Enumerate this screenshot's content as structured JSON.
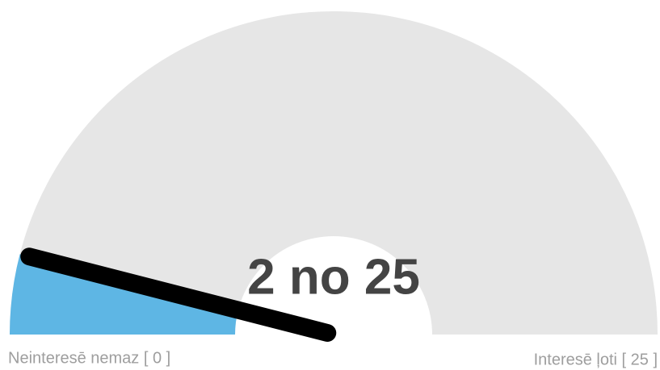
{
  "chart_data": {
    "type": "gauge",
    "value": 2,
    "value_label": "2 no 25",
    "min": 0,
    "max": 25,
    "min_label": "Neinteresē nemaz [ 0 ]",
    "max_label": "Interesē ļoti [ 25 ]",
    "color": "#5eb6e4",
    "track_color": "#e6e6e6",
    "needle_color": "#000000"
  }
}
